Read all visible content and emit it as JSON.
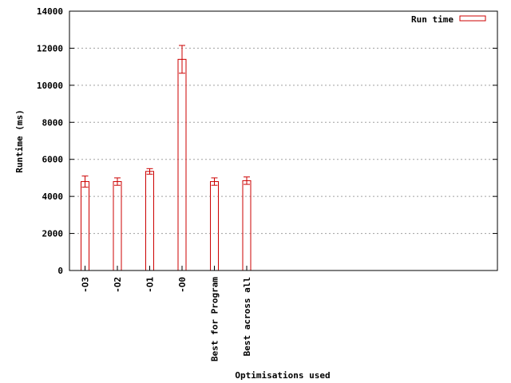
{
  "chart_data": {
    "type": "bar",
    "xlabel": "Optimisations used",
    "ylabel": "Runtime (ms)",
    "categories": [
      "-O3",
      "-O2",
      "-O1",
      "-O0",
      "Best for Program",
      "Best across all"
    ],
    "series": [
      {
        "name": "Run time",
        "values": [
          4800,
          4800,
          5350,
          11400,
          4800,
          4850
        ],
        "error_low": [
          4500,
          4600,
          5200,
          10650,
          4600,
          4650
        ],
        "error_high": [
          5100,
          5000,
          5500,
          12150,
          5000,
          5050
        ]
      }
    ],
    "ylim": [
      0,
      14000
    ],
    "yticks": [
      "0",
      "2000",
      "4000",
      "6000",
      "8000",
      "10000",
      "12000",
      "14000"
    ],
    "grid": true,
    "legend_position": "top-right",
    "colors": {
      "series": "#cc0000",
      "axis": "#000000",
      "grid": "#a0a0a0"
    }
  }
}
